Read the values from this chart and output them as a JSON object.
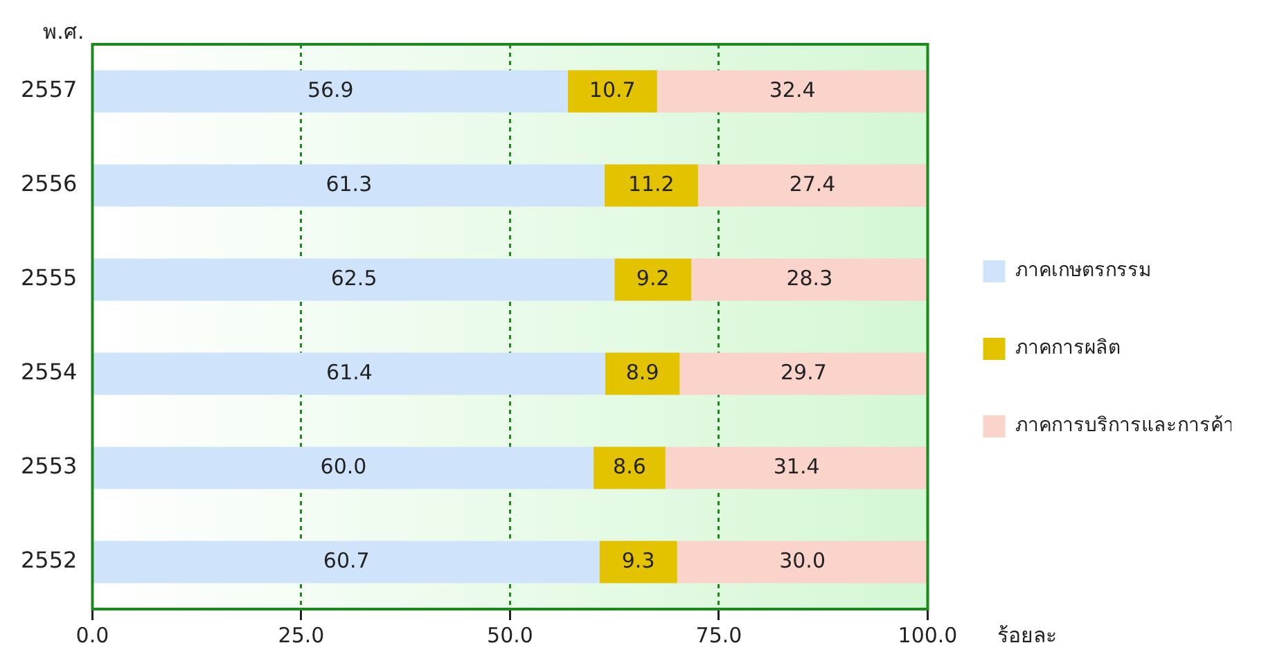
{
  "chart_data": {
    "type": "bar",
    "orientation": "horizontal",
    "stacked": true,
    "ylabel": "พ.ศ.",
    "xlabel": "ร้อยละ",
    "categories": [
      "2557",
      "2556",
      "2555",
      "2554",
      "2553",
      "2552"
    ],
    "series": [
      {
        "name": "ภาคเกษตรกรรม",
        "color": "#cfe4fa",
        "values": [
          56.9,
          61.3,
          62.5,
          61.4,
          60.0,
          60.7
        ],
        "value_labels": [
          "56.9",
          "61.3",
          "62.5",
          "61.4",
          "60.0",
          "60.7"
        ]
      },
      {
        "name": "ภาคการผลิต",
        "color": "#e3c200",
        "values": [
          10.7,
          11.2,
          9.2,
          8.9,
          8.6,
          9.3
        ],
        "value_labels": [
          "10.7",
          "11.2",
          "9.2",
          "8.9",
          "8.6",
          "9.3"
        ]
      },
      {
        "name": "ภาคการบริการและการค้า",
        "color": "#fad3cb",
        "values": [
          32.4,
          27.4,
          28.3,
          29.7,
          31.4,
          30.0
        ],
        "value_labels": [
          "32.4",
          "27.4",
          "28.3",
          "29.7",
          "31.4",
          "30.0"
        ]
      }
    ],
    "xlim": [
      0,
      100
    ],
    "xticks": [
      {
        "value": 0,
        "label": "0.0"
      },
      {
        "value": 25,
        "label": "25.0"
      },
      {
        "value": 50,
        "label": "50.0"
      },
      {
        "value": 75,
        "label": "75.0"
      },
      {
        "value": 100,
        "label": "100.0"
      }
    ],
    "grid": "x",
    "legend": "right"
  }
}
